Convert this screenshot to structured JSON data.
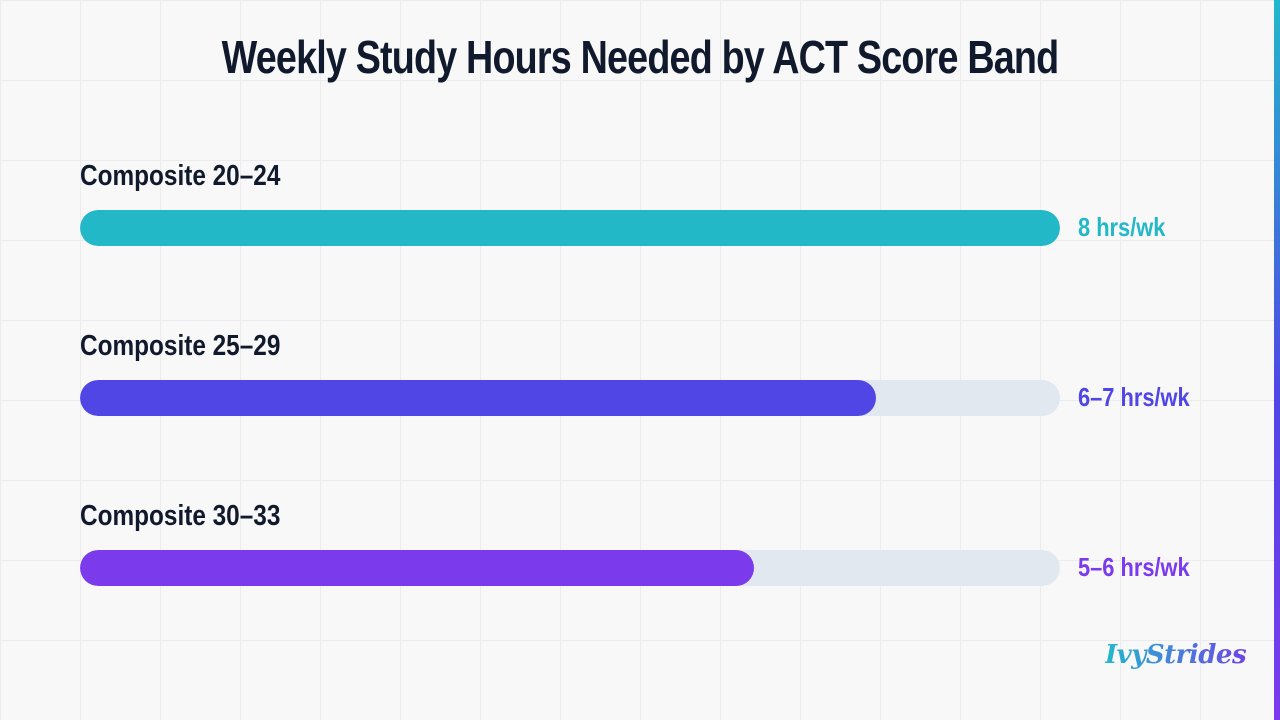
{
  "chart_data": {
    "type": "bar",
    "orientation": "horizontal",
    "title": "Weekly Study Hours Needed by ACT Score Band",
    "categories": [
      "Composite 20–24",
      "Composite 25–29",
      "Composite 30–33"
    ],
    "values": [
      8,
      6.5,
      5.5
    ],
    "value_labels": [
      "8 hrs/wk",
      "6–7 hrs/wk",
      "5–6 hrs/wk"
    ],
    "colors": [
      "#22b8c8",
      "#5046e5",
      "#7c3aed"
    ],
    "track_color": "#e1e8f0",
    "xlim": [
      0,
      8
    ],
    "grid": true
  },
  "brand": {
    "text": "IvyStrides"
  },
  "colors": {
    "title": "#111a2c",
    "background": "#f8f8f9",
    "accent_stripe": [
      "#22b8cc",
      "#5046e5",
      "#7c3aed"
    ]
  }
}
